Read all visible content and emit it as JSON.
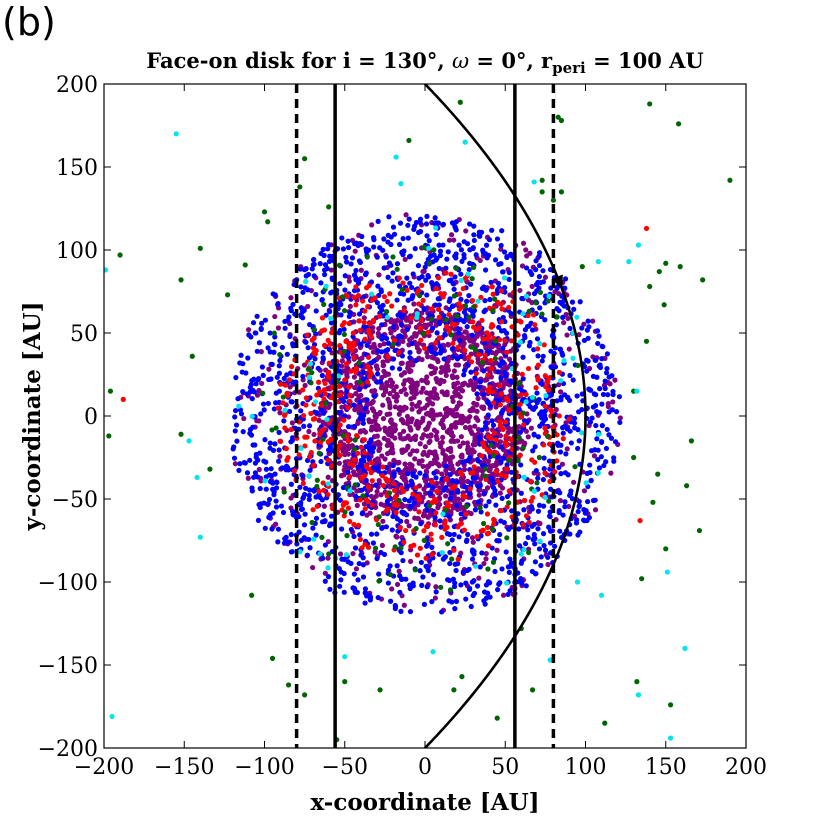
{
  "panel_label": "(b)",
  "chart_data": {
    "type": "scatter",
    "title": {
      "prefix": "Face-on disk for i = 130°, ",
      "omega": "ω",
      "middle": " = 0°, r",
      "subscript": "peri",
      "suffix": " = 100 AU"
    },
    "xlabel": "x-coordinate [AU]",
    "ylabel": "y-coordinate [AU]",
    "xlim": [
      -200,
      200
    ],
    "ylim": [
      -200,
      200
    ],
    "xticks": [
      -200,
      -150,
      -100,
      -50,
      0,
      50,
      100,
      150,
      200
    ],
    "yticks": [
      -200,
      -150,
      -100,
      -50,
      0,
      50,
      100,
      150,
      200
    ],
    "xtick_labels": [
      "−200",
      "−150",
      "−100",
      "−50",
      "0",
      "50",
      "100",
      "150",
      "200"
    ],
    "ytick_labels": [
      "−200",
      "−150",
      "−100",
      "−50",
      "0",
      "50",
      "100",
      "150",
      "200"
    ],
    "grid": false,
    "colors": {
      "purple": "#800080",
      "blue": "#0000ff",
      "red": "#ff0000",
      "green": "#006400",
      "cyan": "#00e5ee",
      "line": "#000000"
    },
    "disk": {
      "center": [
        0,
        0
      ],
      "populations": [
        {
          "color": "purple",
          "r_max": 65,
          "count": 1400
        },
        {
          "color": "purple",
          "r_max": 120,
          "count": 500
        },
        {
          "color": "blue",
          "r_min": 35,
          "r_max": 120,
          "count": 1700
        },
        {
          "color": "red",
          "r_min": 40,
          "r_max": 90,
          "count": 500
        },
        {
          "color": "green",
          "r_min": 45,
          "r_max": 105,
          "count": 120
        },
        {
          "color": "cyan",
          "r_min": 55,
          "r_max": 120,
          "count": 60
        }
      ]
    },
    "outliers": [
      {
        "x": -196,
        "y": 15,
        "c": "green"
      },
      {
        "x": -197,
        "y": -12,
        "c": "green"
      },
      {
        "x": -188,
        "y": 10,
        "c": "red"
      },
      {
        "x": -190,
        "y": 97,
        "c": "green"
      },
      {
        "x": -199,
        "y": 88,
        "c": "cyan"
      },
      {
        "x": -195,
        "y": -181,
        "c": "cyan"
      },
      {
        "x": -155,
        "y": 170,
        "c": "cyan"
      },
      {
        "x": -152,
        "y": 82,
        "c": "green"
      },
      {
        "x": -145,
        "y": 36,
        "c": "green"
      },
      {
        "x": -152,
        "y": -11,
        "c": "green"
      },
      {
        "x": -147,
        "y": -15,
        "c": "cyan"
      },
      {
        "x": -142,
        "y": -37,
        "c": "cyan"
      },
      {
        "x": -140,
        "y": -73,
        "c": "cyan"
      },
      {
        "x": -140,
        "y": 101,
        "c": "green"
      },
      {
        "x": -134,
        "y": -32,
        "c": "green"
      },
      {
        "x": -123,
        "y": 73,
        "c": "green"
      },
      {
        "x": -108,
        "y": -108,
        "c": "green"
      },
      {
        "x": -112,
        "y": 91,
        "c": "green"
      },
      {
        "x": -100,
        "y": 123,
        "c": "green"
      },
      {
        "x": -98,
        "y": 117,
        "c": "green"
      },
      {
        "x": -95,
        "y": -146,
        "c": "green"
      },
      {
        "x": -85,
        "y": -162,
        "c": "green"
      },
      {
        "x": -75,
        "y": -168,
        "c": "green"
      },
      {
        "x": -78,
        "y": 138,
        "c": "green"
      },
      {
        "x": -75,
        "y": 155,
        "c": "green"
      },
      {
        "x": -60,
        "y": 126,
        "c": "green"
      },
      {
        "x": -55,
        "y": -195,
        "c": "green"
      },
      {
        "x": -50,
        "y": -160,
        "c": "green"
      },
      {
        "x": -50,
        "y": -145,
        "c": "cyan"
      },
      {
        "x": -28,
        "y": -165,
        "c": "green"
      },
      {
        "x": -18,
        "y": 156,
        "c": "cyan"
      },
      {
        "x": -10,
        "y": 166,
        "c": "green"
      },
      {
        "x": -15,
        "y": 140,
        "c": "cyan"
      },
      {
        "x": 5,
        "y": -142,
        "c": "cyan"
      },
      {
        "x": 18,
        "y": -165,
        "c": "green"
      },
      {
        "x": 23,
        "y": -157,
        "c": "green"
      },
      {
        "x": 22,
        "y": 189,
        "c": "green"
      },
      {
        "x": 25,
        "y": 165,
        "c": "cyan"
      },
      {
        "x": 45,
        "y": -182,
        "c": "green"
      },
      {
        "x": 60,
        "y": -128,
        "c": "green"
      },
      {
        "x": 67,
        "y": -165,
        "c": "green"
      },
      {
        "x": 68,
        "y": 141,
        "c": "cyan"
      },
      {
        "x": 73,
        "y": 135,
        "c": "green"
      },
      {
        "x": 73,
        "y": 142,
        "c": "green"
      },
      {
        "x": 78,
        "y": -147,
        "c": "cyan"
      },
      {
        "x": 80,
        "y": 130,
        "c": "green"
      },
      {
        "x": 83,
        "y": 180,
        "c": "green"
      },
      {
        "x": 85,
        "y": 178,
        "c": "green"
      },
      {
        "x": 85,
        "y": 135,
        "c": "green"
      },
      {
        "x": 95,
        "y": -100,
        "c": "cyan"
      },
      {
        "x": 98,
        "y": 90,
        "c": "green"
      },
      {
        "x": 108,
        "y": 93,
        "c": "cyan"
      },
      {
        "x": 110,
        "y": -108,
        "c": "cyan"
      },
      {
        "x": 112,
        "y": -185,
        "c": "green"
      },
      {
        "x": 127,
        "y": 93,
        "c": "cyan"
      },
      {
        "x": 133,
        "y": 103,
        "c": "cyan"
      },
      {
        "x": 130,
        "y": -25,
        "c": "green"
      },
      {
        "x": 130,
        "y": 15,
        "c": "green"
      },
      {
        "x": 132,
        "y": -160,
        "c": "green"
      },
      {
        "x": 133,
        "y": -168,
        "c": "cyan"
      },
      {
        "x": 134,
        "y": -63,
        "c": "red"
      },
      {
        "x": 135,
        "y": -98,
        "c": "green"
      },
      {
        "x": 138,
        "y": 45,
        "c": "green"
      },
      {
        "x": 138,
        "y": 113,
        "c": "red"
      },
      {
        "x": 140,
        "y": 78,
        "c": "green"
      },
      {
        "x": 140,
        "y": 188,
        "c": "green"
      },
      {
        "x": 142,
        "y": -52,
        "c": "green"
      },
      {
        "x": 145,
        "y": -35,
        "c": "green"
      },
      {
        "x": 146,
        "y": 87,
        "c": "green"
      },
      {
        "x": 149,
        "y": 67,
        "c": "green"
      },
      {
        "x": 150,
        "y": 92,
        "c": "green"
      },
      {
        "x": 150,
        "y": -80,
        "c": "green"
      },
      {
        "x": 151,
        "y": -94,
        "c": "cyan"
      },
      {
        "x": 153,
        "y": -174,
        "c": "green"
      },
      {
        "x": 153,
        "y": -194,
        "c": "cyan"
      },
      {
        "x": 158,
        "y": 176,
        "c": "green"
      },
      {
        "x": 162,
        "y": -140,
        "c": "cyan"
      },
      {
        "x": 163,
        "y": -42,
        "c": "green"
      },
      {
        "x": 166,
        "y": -15,
        "c": "green"
      },
      {
        "x": 171,
        "y": -69,
        "c": "green"
      },
      {
        "x": 173,
        "y": 82,
        "c": "green"
      },
      {
        "x": 190,
        "y": 142,
        "c": "green"
      },
      {
        "x": 159,
        "y": 90,
        "c": "green"
      },
      {
        "x": 132,
        "y": 15,
        "c": "cyan"
      }
    ],
    "solid_lines_x": [
      -56,
      56
    ],
    "dashed_lines_x": [
      -80,
      80
    ],
    "orbit": {
      "r_peri": 100,
      "shape": "parabola",
      "direction_arrow_at": [
        60,
        80
      ]
    }
  }
}
